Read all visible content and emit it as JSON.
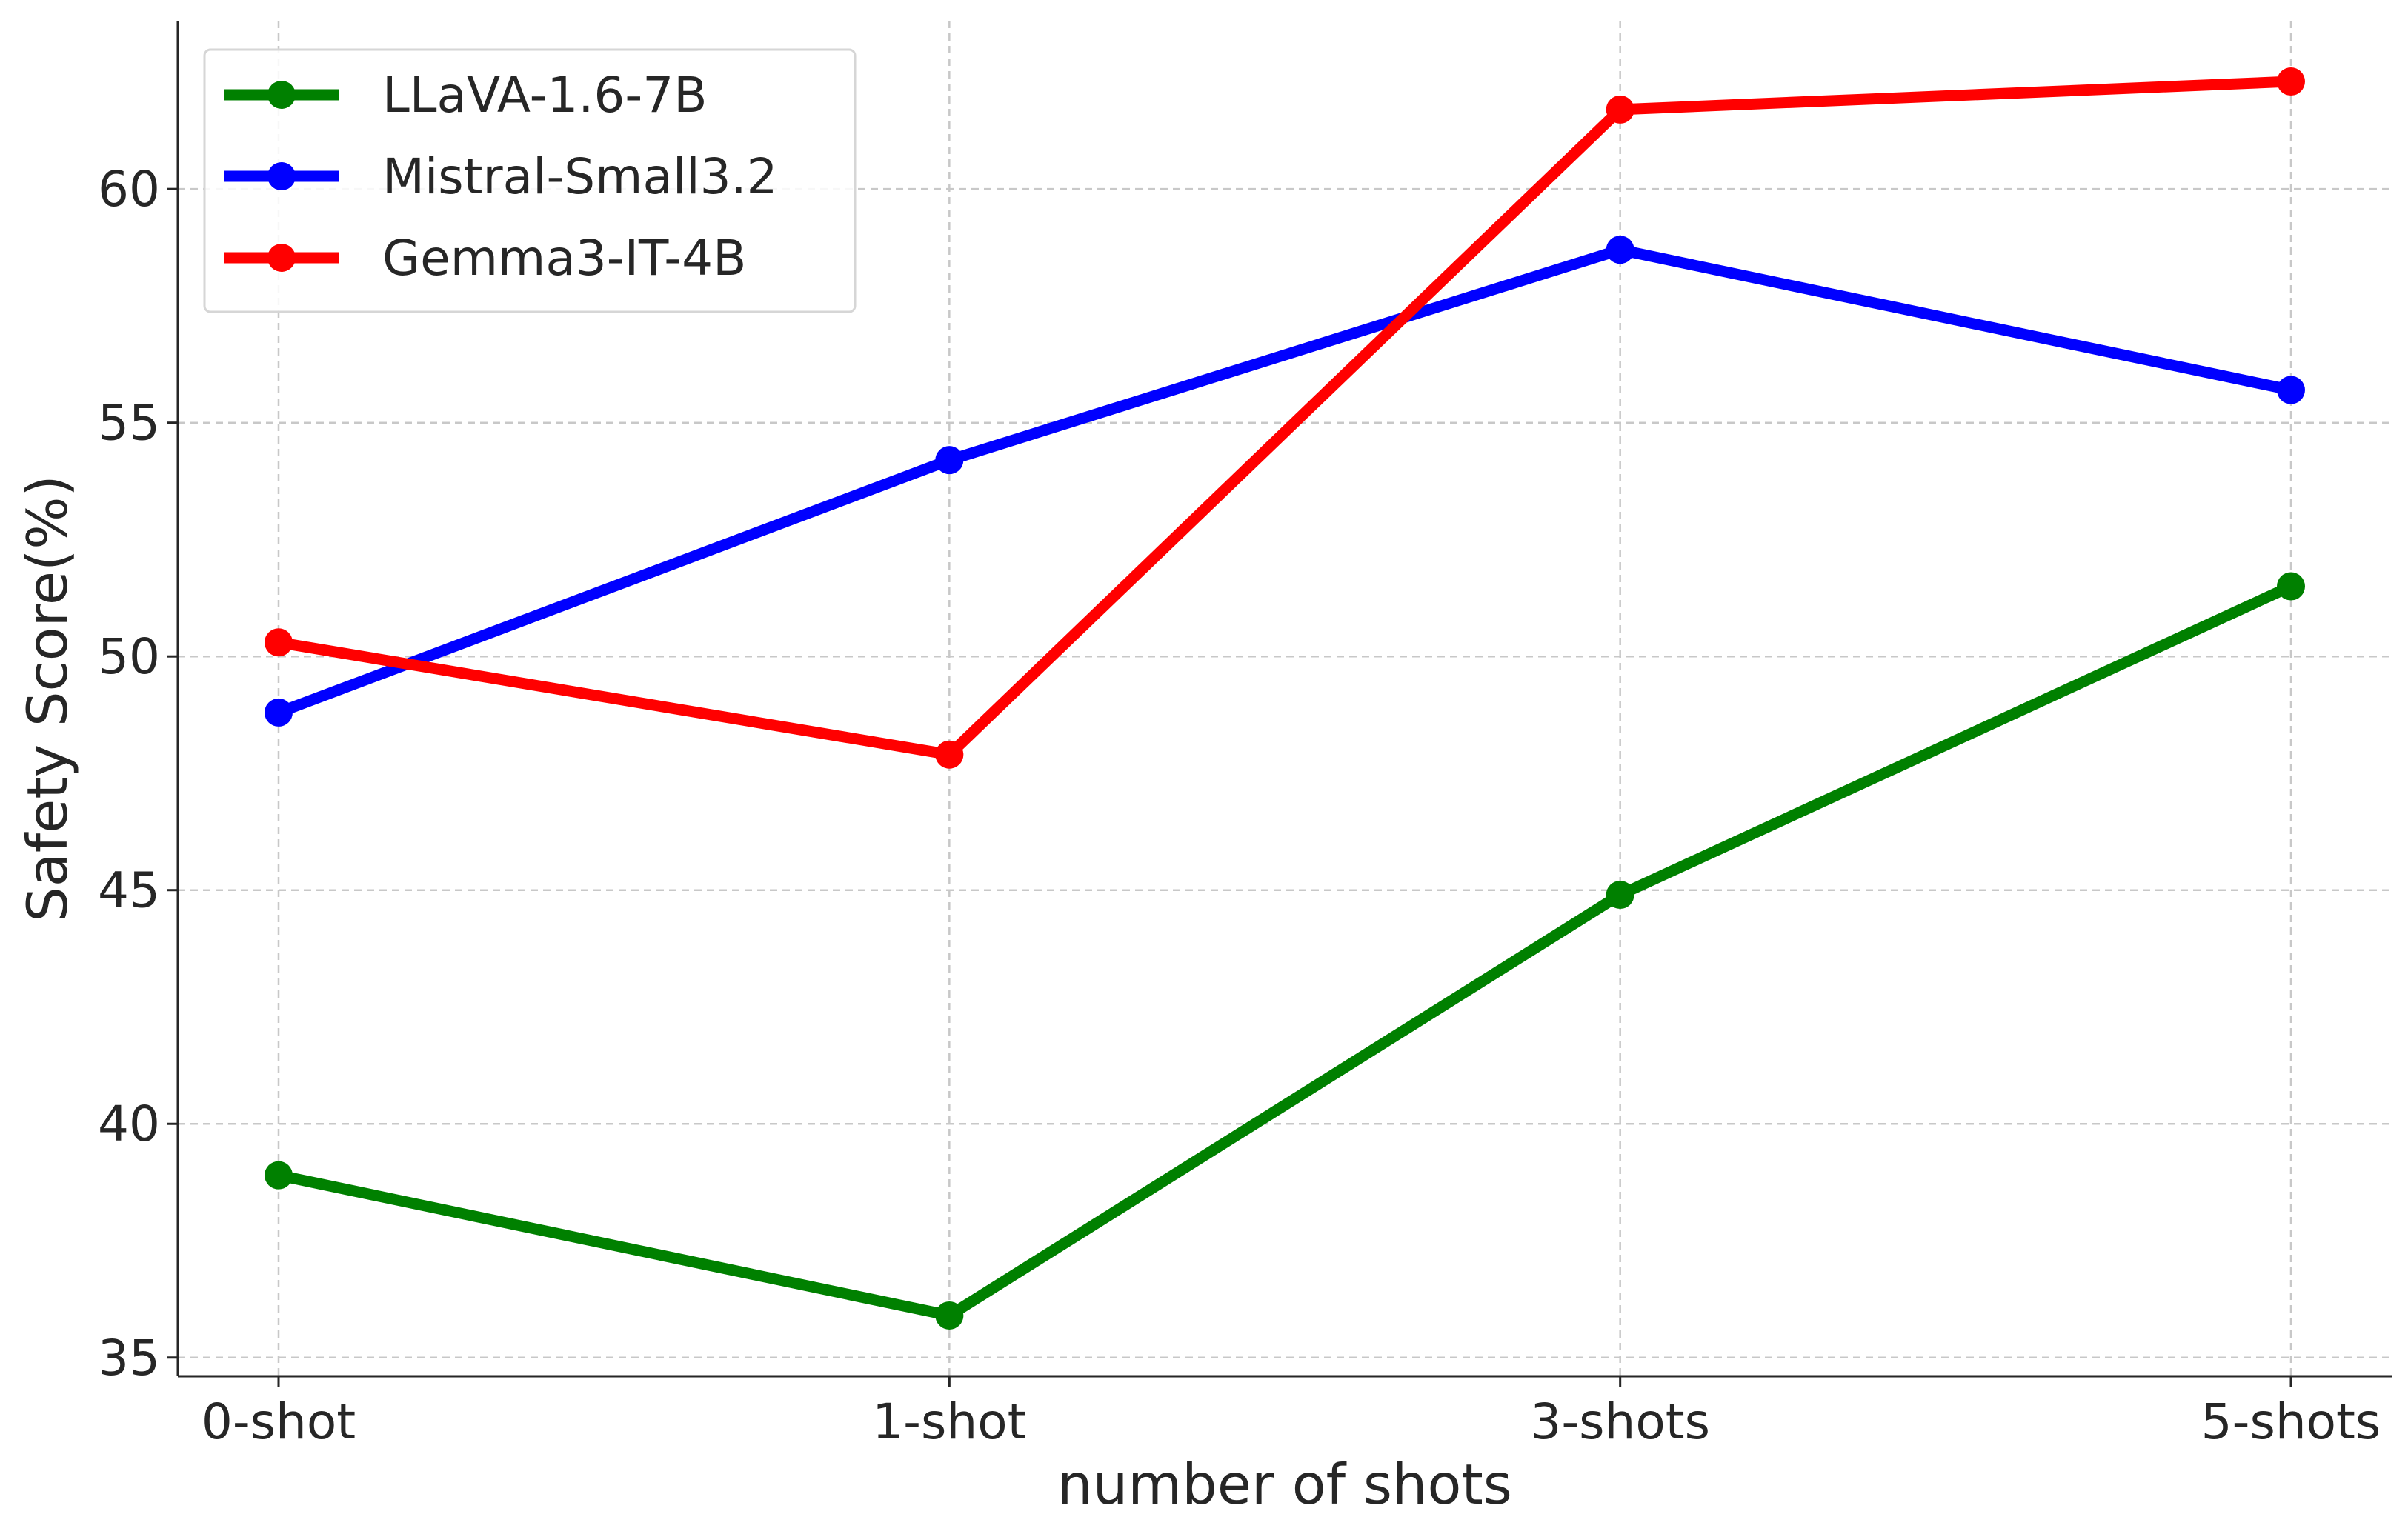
{
  "chart_data": {
    "type": "line",
    "title": "",
    "xlabel": "number of shots",
    "ylabel": "Safety Score(%)",
    "categories": [
      "0-shot",
      "1-shot",
      "3-shots",
      "5-shots"
    ],
    "ylim": [
      34.6,
      63.6
    ],
    "yticks": [
      35,
      40,
      45,
      50,
      55,
      60
    ],
    "grid": true,
    "legend_position": "top-left",
    "series": [
      {
        "name": "LLaVA-1.6-7B",
        "color": "#008000",
        "values": [
          38.9,
          35.9,
          44.9,
          51.5
        ]
      },
      {
        "name": "Mistral-Small3.2",
        "color": "#0000ff",
        "values": [
          48.8,
          54.2,
          58.7,
          55.7
        ]
      },
      {
        "name": "Gemma3-IT-4B",
        "color": "#ff0000",
        "values": [
          50.3,
          47.9,
          61.7,
          62.3
        ]
      }
    ]
  }
}
